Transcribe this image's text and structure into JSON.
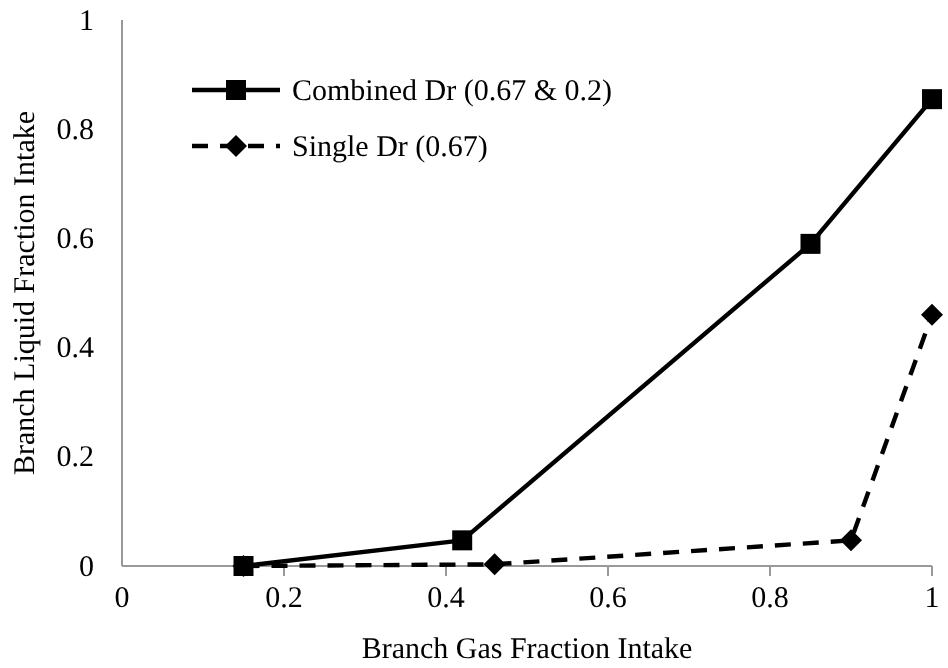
{
  "chart_data": {
    "type": "line",
    "xlabel": "Branch Gas Fraction Intake",
    "ylabel": "Branch Liquid Fraction Intake",
    "xlim": [
      0,
      1
    ],
    "ylim": [
      0,
      1
    ],
    "xticks": [
      0,
      0.2,
      0.4,
      0.6,
      0.8,
      1
    ],
    "yticks": [
      0,
      0.2,
      0.4,
      0.6,
      0.8,
      1
    ],
    "grid": false,
    "legend": "top left",
    "series": [
      {
        "name": "Combined Dr (0.67 & 0.2)",
        "color": "#000000",
        "marker": "square",
        "line_style": "solid",
        "x": [
          0.15,
          0.42,
          0.85,
          1.0
        ],
        "values": [
          0,
          0.047,
          0.59,
          0.855
        ]
      },
      {
        "name": "Single Dr (0.67)",
        "color": "#000000",
        "marker": "diamond",
        "line_style": "dashed",
        "x": [
          0.15,
          0.46,
          0.9,
          1.0
        ],
        "values": [
          0,
          0.003,
          0.047,
          0.46
        ]
      }
    ]
  }
}
